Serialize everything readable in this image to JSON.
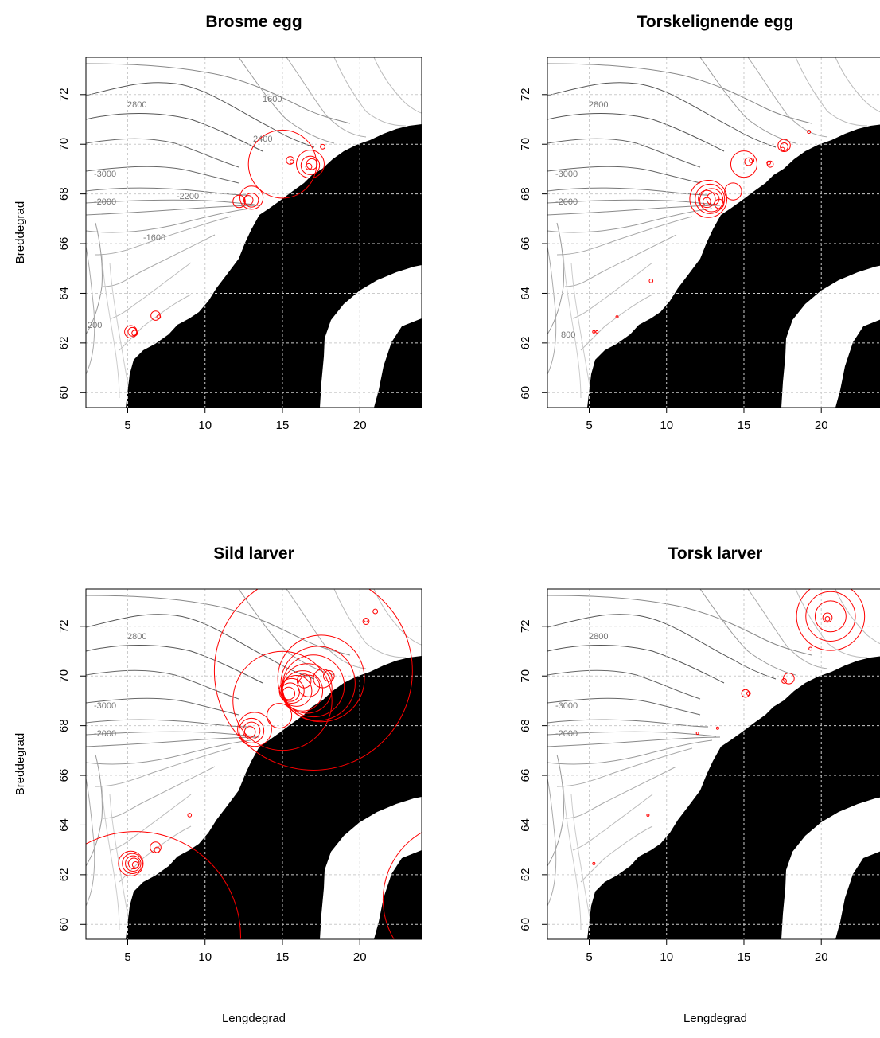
{
  "figure": {
    "background": "#ffffff",
    "colors": {
      "land": "#000000",
      "circles": "#ff0000",
      "contours_dark": "#555555",
      "contours_light": "#bbbbbb",
      "grid": "#cccccc"
    }
  },
  "chart_data": [
    {
      "type": "scatter",
      "title": "Brosme egg",
      "xlabel": "",
      "ylabel": "Breddegrad",
      "xlim": [
        2.3,
        24
      ],
      "ylim": [
        59.4,
        73.5
      ],
      "xticks": [
        5,
        10,
        15,
        20
      ],
      "yticks": [
        60,
        62,
        64,
        66,
        68,
        70,
        72
      ],
      "grid": true,
      "land_fill": "#000000",
      "contour_labels": [
        "2800",
        "-3000",
        "-2000",
        "-1600",
        "1600",
        "2400",
        "-2200",
        "200"
      ],
      "series": [
        {
          "marker": "circle",
          "color": "#ff0000",
          "points": [
            {
              "lon": 15.0,
              "lat": 69.2,
              "r": 2.2
            },
            {
              "lon": 16.8,
              "lat": 69.2,
              "r": 0.9
            },
            {
              "lon": 16.8,
              "lat": 69.15,
              "r": 0.6
            },
            {
              "lon": 16.9,
              "lat": 69.2,
              "r": 0.35
            },
            {
              "lon": 16.7,
              "lat": 69.1,
              "r": 0.2
            },
            {
              "lon": 15.5,
              "lat": 69.35,
              "r": 0.25
            },
            {
              "lon": 15.6,
              "lat": 69.3,
              "r": 0.12
            },
            {
              "lon": 17.6,
              "lat": 69.9,
              "r": 0.15
            },
            {
              "lon": 13.0,
              "lat": 67.85,
              "r": 0.75
            },
            {
              "lon": 13.0,
              "lat": 67.75,
              "r": 0.45
            },
            {
              "lon": 12.8,
              "lat": 67.75,
              "r": 0.3
            },
            {
              "lon": 12.2,
              "lat": 67.7,
              "r": 0.4
            },
            {
              "lon": 5.2,
              "lat": 62.45,
              "r": 0.4
            },
            {
              "lon": 5.3,
              "lat": 62.45,
              "r": 0.28
            },
            {
              "lon": 5.45,
              "lat": 62.4,
              "r": 0.18
            },
            {
              "lon": 6.8,
              "lat": 63.1,
              "r": 0.3
            },
            {
              "lon": 7.0,
              "lat": 63.05,
              "r": 0.12
            }
          ]
        }
      ]
    },
    {
      "type": "scatter",
      "title": "Torskelignende egg",
      "xlabel": "",
      "ylabel": "",
      "xlim": [
        2.3,
        24
      ],
      "ylim": [
        59.4,
        73.5
      ],
      "xticks": [
        5,
        10,
        15,
        20
      ],
      "yticks": [
        60,
        62,
        64,
        66,
        68,
        70,
        72
      ],
      "grid": true,
      "land_fill": "#000000",
      "contour_labels": [
        "2800",
        "-3000",
        "-2000",
        "800"
      ],
      "series": [
        {
          "marker": "circle",
          "color": "#ff0000",
          "points": [
            {
              "lon": 12.7,
              "lat": 67.8,
              "r": 1.2
            },
            {
              "lon": 12.8,
              "lat": 67.8,
              "r": 0.95
            },
            {
              "lon": 12.9,
              "lat": 67.75,
              "r": 0.75
            },
            {
              "lon": 12.6,
              "lat": 67.8,
              "r": 0.55
            },
            {
              "lon": 13.0,
              "lat": 67.8,
              "r": 0.4
            },
            {
              "lon": 12.6,
              "lat": 67.7,
              "r": 0.25
            },
            {
              "lon": 13.4,
              "lat": 67.6,
              "r": 0.3
            },
            {
              "lon": 14.3,
              "lat": 68.1,
              "r": 0.55
            },
            {
              "lon": 15.0,
              "lat": 69.2,
              "r": 0.85
            },
            {
              "lon": 15.3,
              "lat": 69.3,
              "r": 0.25
            },
            {
              "lon": 15.5,
              "lat": 69.35,
              "r": 0.15
            },
            {
              "lon": 16.7,
              "lat": 69.2,
              "r": 0.2
            },
            {
              "lon": 16.6,
              "lat": 69.25,
              "r": 0.12
            },
            {
              "lon": 17.6,
              "lat": 69.95,
              "r": 0.4
            },
            {
              "lon": 17.6,
              "lat": 69.9,
              "r": 0.25
            },
            {
              "lon": 17.5,
              "lat": 69.8,
              "r": 0.12
            },
            {
              "lon": 19.2,
              "lat": 70.5,
              "r": 0.1
            },
            {
              "lon": 9.0,
              "lat": 64.5,
              "r": 0.12
            },
            {
              "lon": 5.3,
              "lat": 62.45,
              "r": 0.08
            },
            {
              "lon": 5.5,
              "lat": 62.45,
              "r": 0.06
            },
            {
              "lon": 6.8,
              "lat": 63.05,
              "r": 0.05
            }
          ]
        }
      ]
    },
    {
      "type": "scatter",
      "title": "Sild larver",
      "xlabel": "Lengdegrad",
      "ylabel": "Breddegrad",
      "xlim": [
        2.3,
        24
      ],
      "ylim": [
        59.4,
        73.5
      ],
      "xticks": [
        5,
        10,
        15,
        20
      ],
      "yticks": [
        60,
        62,
        64,
        66,
        68,
        70,
        72
      ],
      "grid": true,
      "land_fill": "#000000",
      "contour_labels": [
        "2800",
        "-3000",
        "-2000"
      ],
      "series": [
        {
          "marker": "circle",
          "color": "#ff0000",
          "points": [
            {
              "lon": 17.0,
              "lat": 70.2,
              "r": 6.4
            },
            {
              "lon": 15.0,
              "lat": 69.0,
              "r": 3.2
            },
            {
              "lon": 5.5,
              "lat": 59.5,
              "r": 6.8
            },
            {
              "lon": 26.5,
              "lat": 61.0,
              "r": 5.0
            },
            {
              "lon": 17.5,
              "lat": 69.9,
              "r": 2.8
            },
            {
              "lon": 17.3,
              "lat": 69.7,
              "r": 2.4
            },
            {
              "lon": 17.0,
              "lat": 69.6,
              "r": 2.0
            },
            {
              "lon": 16.6,
              "lat": 69.5,
              "r": 1.6
            },
            {
              "lon": 16.3,
              "lat": 69.4,
              "r": 1.3
            },
            {
              "lon": 15.9,
              "lat": 69.4,
              "r": 1.0
            },
            {
              "lon": 15.6,
              "lat": 69.4,
              "r": 0.8
            },
            {
              "lon": 15.5,
              "lat": 69.35,
              "r": 0.6
            },
            {
              "lon": 15.4,
              "lat": 69.3,
              "r": 0.4
            },
            {
              "lon": 16.7,
              "lat": 69.6,
              "r": 0.7
            },
            {
              "lon": 17.6,
              "lat": 69.9,
              "r": 0.6
            },
            {
              "lon": 18.0,
              "lat": 70.0,
              "r": 0.35
            },
            {
              "lon": 16.4,
              "lat": 69.8,
              "r": 0.45
            },
            {
              "lon": 13.2,
              "lat": 67.85,
              "r": 1.1
            },
            {
              "lon": 13.0,
              "lat": 67.8,
              "r": 0.8
            },
            {
              "lon": 13.0,
              "lat": 67.8,
              "r": 0.55
            },
            {
              "lon": 12.9,
              "lat": 67.75,
              "r": 0.35
            },
            {
              "lon": 14.8,
              "lat": 68.4,
              "r": 0.8
            },
            {
              "lon": 20.4,
              "lat": 72.2,
              "r": 0.2
            },
            {
              "lon": 20.4,
              "lat": 72.25,
              "r": 0.12
            },
            {
              "lon": 21.0,
              "lat": 72.6,
              "r": 0.15
            },
            {
              "lon": 9.0,
              "lat": 64.4,
              "r": 0.12
            },
            {
              "lon": 5.2,
              "lat": 62.45,
              "r": 0.8
            },
            {
              "lon": 5.3,
              "lat": 62.45,
              "r": 0.65
            },
            {
              "lon": 5.35,
              "lat": 62.45,
              "r": 0.5
            },
            {
              "lon": 5.4,
              "lat": 62.45,
              "r": 0.35
            },
            {
              "lon": 5.5,
              "lat": 62.4,
              "r": 0.2
            },
            {
              "lon": 6.8,
              "lat": 63.1,
              "r": 0.35
            },
            {
              "lon": 6.9,
              "lat": 63.0,
              "r": 0.18
            }
          ]
        }
      ]
    },
    {
      "type": "scatter",
      "title": "Torsk larver",
      "xlabel": "Lengdegrad",
      "ylabel": "",
      "xlim": [
        2.3,
        24
      ],
      "ylim": [
        59.4,
        73.5
      ],
      "xticks": [
        5,
        10,
        15,
        20
      ],
      "yticks": [
        60,
        62,
        64,
        66,
        68,
        70,
        72
      ],
      "grid": true,
      "land_fill": "#000000",
      "contour_labels": [
        "2800",
        "-3000",
        "-2000"
      ],
      "series": [
        {
          "marker": "circle",
          "color": "#ff0000",
          "points": [
            {
              "lon": 20.6,
              "lat": 72.4,
              "r": 2.2
            },
            {
              "lon": 20.6,
              "lat": 72.4,
              "r": 1.6
            },
            {
              "lon": 20.6,
              "lat": 72.4,
              "r": 1.0
            },
            {
              "lon": 20.4,
              "lat": 72.35,
              "r": 0.3
            },
            {
              "lon": 20.4,
              "lat": 72.3,
              "r": 0.15
            },
            {
              "lon": 19.3,
              "lat": 71.1,
              "r": 0.1
            },
            {
              "lon": 15.1,
              "lat": 69.3,
              "r": 0.25
            },
            {
              "lon": 15.3,
              "lat": 69.3,
              "r": 0.12
            },
            {
              "lon": 17.9,
              "lat": 69.9,
              "r": 0.35
            },
            {
              "lon": 17.6,
              "lat": 69.8,
              "r": 0.15
            },
            {
              "lon": 12.0,
              "lat": 67.7,
              "r": 0.04
            },
            {
              "lon": 13.3,
              "lat": 67.9,
              "r": 0.04
            },
            {
              "lon": 8.8,
              "lat": 64.4,
              "r": 0.04
            },
            {
              "lon": 5.3,
              "lat": 62.45,
              "r": 0.04
            }
          ]
        }
      ]
    }
  ]
}
